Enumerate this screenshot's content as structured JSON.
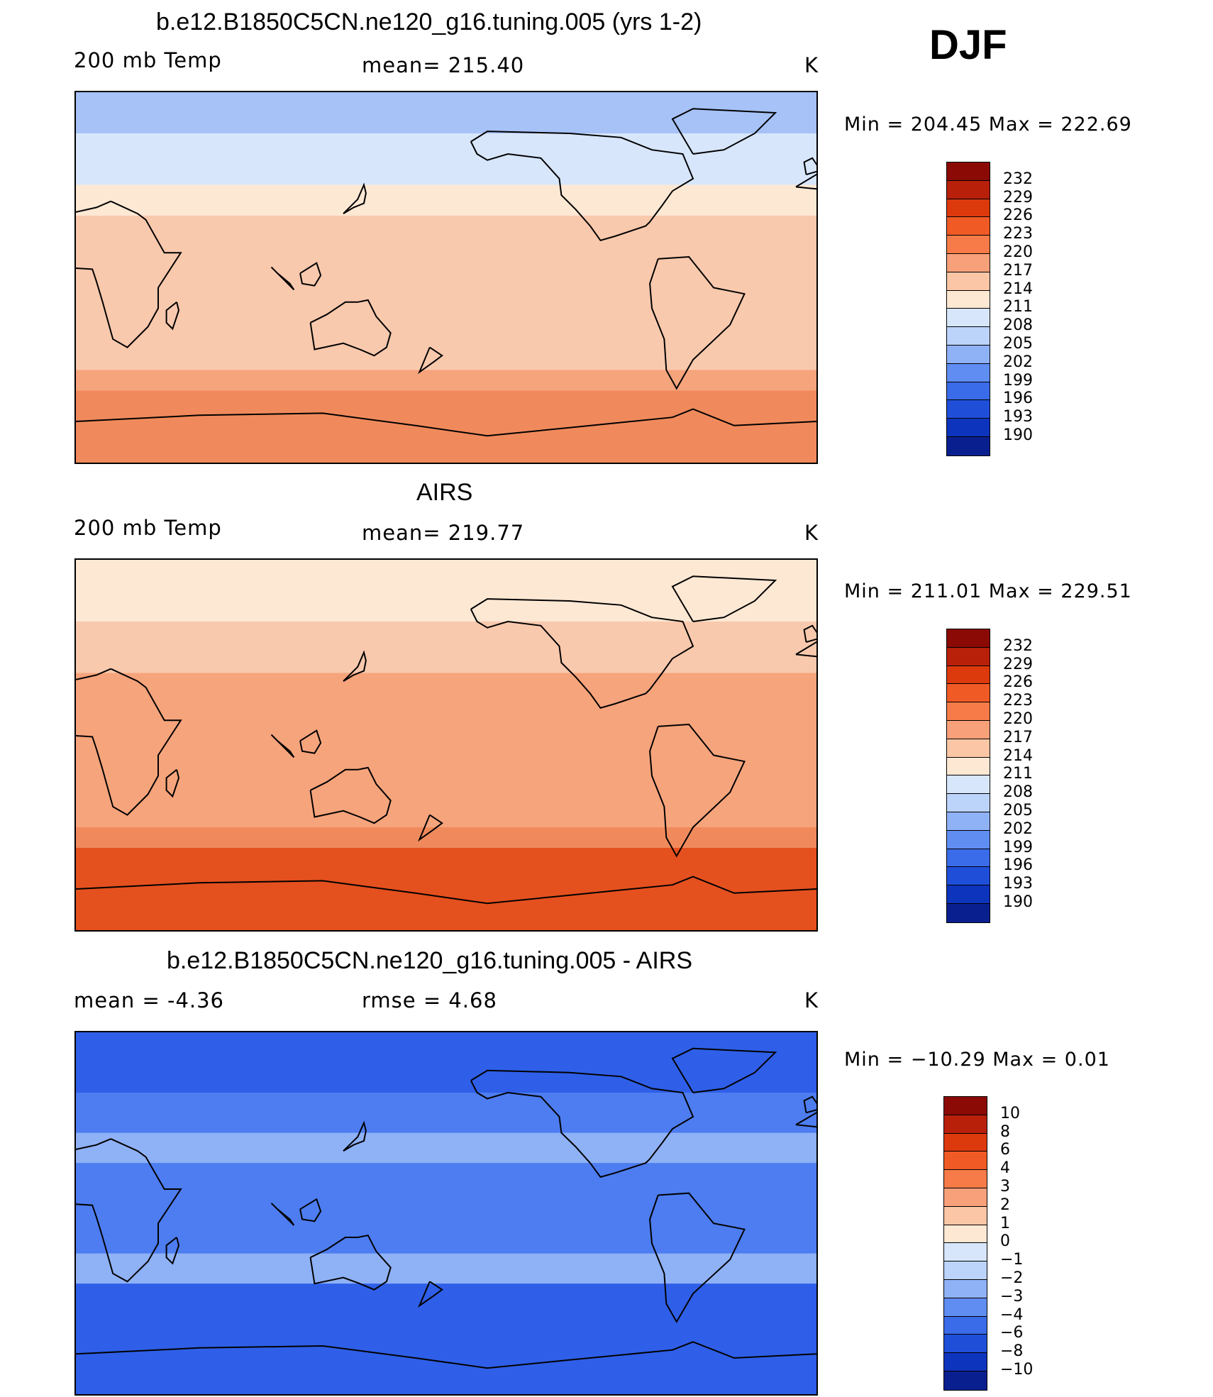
{
  "season": "DJF",
  "panels": [
    {
      "title": "b.e12.B1850C5CN.ne120_g16.tuning.005 (yrs 1-2)",
      "left_label": "200 mb Temp",
      "center_label": "mean=  215.40",
      "units": "K",
      "minmax": "Min  =  204.45  Max  =  222.69",
      "bands": [
        {
          "lat_top": 90,
          "lat_bot": 70,
          "color": "#a6c2f7"
        },
        {
          "lat_top": 70,
          "lat_bot": 45,
          "color": "#d7e6fb"
        },
        {
          "lat_top": 45,
          "lat_bot": 30,
          "color": "#fde8d4"
        },
        {
          "lat_top": 30,
          "lat_bot": -45,
          "color": "#f9c9ad"
        },
        {
          "lat_top": -45,
          "lat_bot": -55,
          "color": "#f6a47c"
        },
        {
          "lat_top": -55,
          "lat_bot": -90,
          "color": "#f08a5c"
        }
      ]
    },
    {
      "title": "AIRS",
      "left_label": "200 mb Temp",
      "center_label": "mean=  219.77",
      "units": "K",
      "minmax": "Min  =  211.01  Max  =  229.51",
      "bands": [
        {
          "lat_top": 90,
          "lat_bot": 60,
          "color": "#fde8d4"
        },
        {
          "lat_top": 60,
          "lat_bot": 35,
          "color": "#f9c9ad"
        },
        {
          "lat_top": 35,
          "lat_bot": -40,
          "color": "#f6a47c"
        },
        {
          "lat_top": -40,
          "lat_bot": -50,
          "color": "#f08a5c"
        },
        {
          "lat_top": -50,
          "lat_bot": -90,
          "color": "#e5501f"
        }
      ]
    },
    {
      "title": "b.e12.B1850C5CN.ne120_g16.tuning.005 - AIRS",
      "left_label": "mean  =     -4.36",
      "center_label": "rmse  =     4.68",
      "units": "K",
      "minmax": "Min  =  −10.29  Max  =     0.01",
      "bands": [
        {
          "lat_top": 90,
          "lat_bot": 60,
          "color": "#2f5fe8"
        },
        {
          "lat_top": 60,
          "lat_bot": 40,
          "color": "#4d7df0"
        },
        {
          "lat_top": 40,
          "lat_bot": 25,
          "color": "#8fb1f6"
        },
        {
          "lat_top": 25,
          "lat_bot": -20,
          "color": "#4d7df0"
        },
        {
          "lat_top": -20,
          "lat_bot": -35,
          "color": "#8fb1f6"
        },
        {
          "lat_top": -35,
          "lat_bot": -90,
          "color": "#2f5fe8"
        }
      ]
    }
  ],
  "colorbars": [
    {
      "labels": [
        "232",
        "229",
        "226",
        "223",
        "220",
        "217",
        "214",
        "211",
        "208",
        "205",
        "202",
        "199",
        "196",
        "193",
        "190"
      ],
      "colors": [
        "#8b0a05",
        "#b8200a",
        "#dc3a0d",
        "#f05a25",
        "#f67b48",
        "#f8a07a",
        "#fbc6a6",
        "#fde8d4",
        "#d7e6fb",
        "#bcd3fa",
        "#8fb1f6",
        "#5f8df2",
        "#3a6be9",
        "#1f4fd9",
        "#0d34bd",
        "#0a1f8f"
      ]
    },
    {
      "labels": [
        "232",
        "229",
        "226",
        "223",
        "220",
        "217",
        "214",
        "211",
        "208",
        "205",
        "202",
        "199",
        "196",
        "193",
        "190"
      ],
      "colors": [
        "#8b0a05",
        "#b8200a",
        "#dc3a0d",
        "#f05a25",
        "#f67b48",
        "#f8a07a",
        "#fbc6a6",
        "#fde8d4",
        "#d7e6fb",
        "#bcd3fa",
        "#8fb1f6",
        "#5f8df2",
        "#3a6be9",
        "#1f4fd9",
        "#0d34bd",
        "#0a1f8f"
      ]
    },
    {
      "labels": [
        "10",
        "8",
        "6",
        "4",
        "3",
        "2",
        "1",
        "0",
        "−1",
        "−2",
        "−3",
        "−4",
        "−6",
        "−8",
        "−10"
      ],
      "colors": [
        "#8b0a05",
        "#b8200a",
        "#dc3a0d",
        "#f05a25",
        "#f67b48",
        "#f8a07a",
        "#fbc6a6",
        "#fde8d4",
        "#d7e6fb",
        "#bcd3fa",
        "#8fb1f6",
        "#5f8df2",
        "#3a6be9",
        "#1f4fd9",
        "#0d34bd",
        "#0a1f8f"
      ]
    }
  ],
  "colors": {
    "coastline": "#000000"
  }
}
